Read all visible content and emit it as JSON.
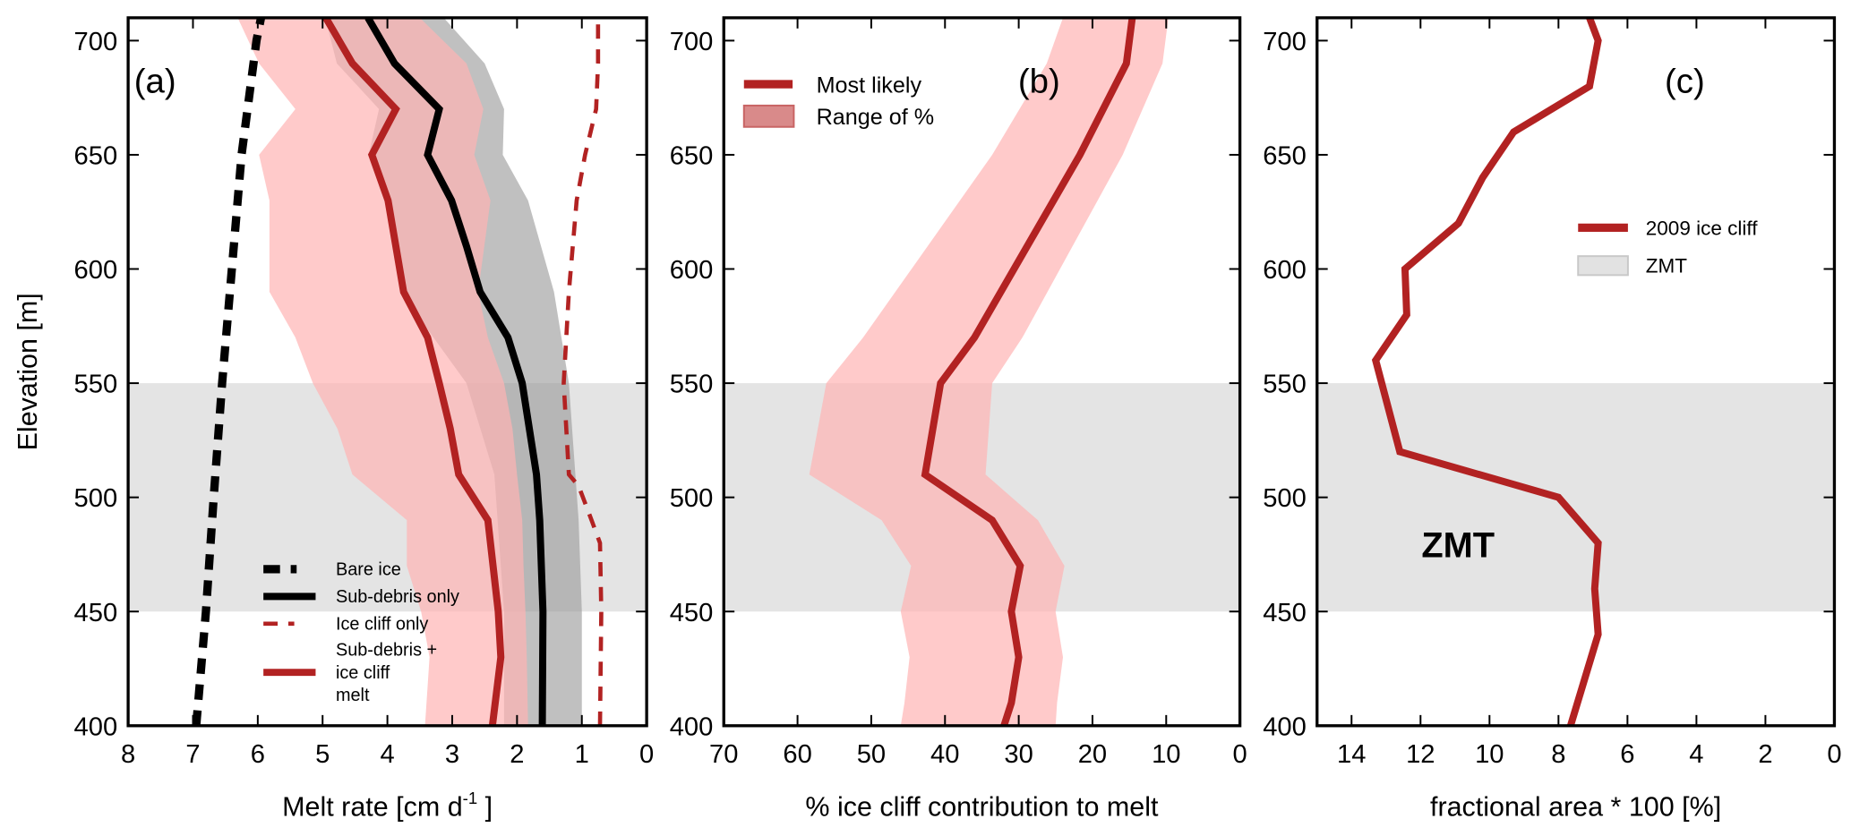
{
  "colors": {
    "red": "#b22222",
    "pink_band": "#ffb3b3",
    "gray_band": "#9a9a9a",
    "zmt": "#e4e4e4",
    "black": "#000000"
  },
  "chart_data": [
    {
      "panel": "a",
      "type": "line",
      "panel_label": "(a)",
      "xlabel": {
        "main": "Melt rate [cm d",
        "sup": "-1",
        "end": " ]"
      },
      "ylabel": "Elevation [m]",
      "xlim": [
        8,
        0
      ],
      "ylim": [
        400,
        710
      ],
      "xticks": [
        8,
        7,
        6,
        5,
        4,
        3,
        2,
        1,
        0
      ],
      "yticks": [
        400,
        450,
        500,
        550,
        600,
        650,
        700
      ],
      "zmt_range": [
        450,
        550
      ],
      "bands": [
        {
          "name": "Sub-debris + ice cliff melt range",
          "color": "pink",
          "elevation": [
            400,
            430,
            450,
            470,
            490,
            510,
            530,
            550,
            570,
            590,
            630,
            650,
            670,
            690,
            710
          ],
          "lower": [
            1.83,
            1.85,
            1.87,
            1.9,
            1.92,
            2.0,
            2.07,
            2.2,
            2.45,
            2.6,
            2.41,
            2.66,
            2.52,
            2.78,
            3.5
          ],
          "upper": [
            3.42,
            3.35,
            3.48,
            3.7,
            3.7,
            4.54,
            4.77,
            5.15,
            5.42,
            5.82,
            5.82,
            5.98,
            5.42,
            5.98,
            6.31
          ]
        },
        {
          "name": "Sub-debris only range",
          "color": "gray",
          "elevation": [
            400,
            450,
            490,
            510,
            550,
            590,
            630,
            650,
            670,
            690,
            710
          ],
          "lower": [
            1.0,
            1.0,
            1.05,
            1.1,
            1.2,
            1.43,
            1.83,
            2.22,
            2.2,
            2.5,
            3.13
          ],
          "upper": [
            2.2,
            2.2,
            2.3,
            2.35,
            2.78,
            3.8,
            3.94,
            4.29,
            4.13,
            4.78,
            4.96
          ]
        }
      ],
      "series": [
        {
          "name": "Bare ice",
          "style": "dashdot-black",
          "elevation": [
            400,
            450,
            500,
            550,
            600,
            650,
            700,
            710
          ],
          "values": [
            6.95,
            6.8,
            6.68,
            6.55,
            6.4,
            6.25,
            6.02,
            5.95
          ]
        },
        {
          "name": "Sub-debris only",
          "style": "solid-black",
          "elevation": [
            400,
            450,
            490,
            510,
            550,
            570,
            590,
            610,
            630,
            650,
            670,
            690,
            710
          ],
          "values": [
            1.61,
            1.6,
            1.65,
            1.7,
            1.92,
            2.14,
            2.57,
            2.78,
            3.01,
            3.38,
            3.2,
            3.89,
            4.3
          ]
        },
        {
          "name": "Ice cliff only",
          "style": "dashed-red",
          "elevation": [
            400,
            450,
            480,
            490,
            505,
            510,
            550,
            590,
            630,
            650,
            670,
            690,
            710
          ],
          "values": [
            0.72,
            0.7,
            0.72,
            0.85,
            1.05,
            1.2,
            1.28,
            1.2,
            1.08,
            0.95,
            0.78,
            0.75,
            0.75
          ]
        },
        {
          "name": "Sub-debris + ice cliff melt",
          "style": "solid-red",
          "elevation": [
            400,
            430,
            450,
            490,
            510,
            530,
            550,
            570,
            590,
            630,
            650,
            670,
            690,
            710
          ],
          "values": [
            2.38,
            2.25,
            2.29,
            2.45,
            2.9,
            3.03,
            3.2,
            3.38,
            3.75,
            3.99,
            4.24,
            3.87,
            4.54,
            4.95
          ]
        }
      ],
      "legend": {
        "placement": "bottom-center",
        "entries": [
          {
            "style": "dashdot-black",
            "lines": [
              "Bare ice"
            ]
          },
          {
            "style": "solid-black",
            "lines": [
              "Sub-debris only"
            ]
          },
          {
            "style": "dashed-red",
            "lines": [
              "Ice cliff only"
            ]
          },
          {
            "style": "solid-red",
            "lines": [
              "Sub-debris +",
              "ice cliff",
              "melt"
            ]
          }
        ]
      }
    },
    {
      "panel": "b",
      "type": "line",
      "panel_label": "(b)",
      "xlabel": {
        "main": "% ice cliff contribution to melt"
      },
      "xlim": [
        70,
        0
      ],
      "ylim": [
        400,
        710
      ],
      "xticks": [
        70,
        60,
        50,
        40,
        30,
        20,
        10,
        0
      ],
      "yticks": [
        400,
        450,
        500,
        550,
        600,
        650,
        700
      ],
      "zmt_range": [
        450,
        550
      ],
      "bands": [
        {
          "name": "Range of %",
          "color": "pink",
          "elevation": [
            400,
            410,
            430,
            450,
            470,
            490,
            510,
            550,
            570,
            650,
            690,
            710
          ],
          "lower": [
            25,
            24.8,
            24,
            25,
            23.8,
            27.4,
            34.5,
            33.6,
            29.5,
            15.9,
            10.5,
            9.7
          ],
          "upper": [
            46,
            45.5,
            44.8,
            46,
            44.6,
            48.6,
            58.4,
            56.1,
            51.1,
            33.6,
            26.2,
            24
          ]
        }
      ],
      "series": [
        {
          "name": "Most likely",
          "style": "solid-red",
          "elevation": [
            400,
            410,
            430,
            450,
            470,
            490,
            510,
            550,
            570,
            650,
            690,
            710
          ],
          "values": [
            32,
            31,
            30,
            31,
            29.8,
            33.6,
            42.7,
            40.6,
            36,
            21.7,
            15.4,
            14.6
          ]
        }
      ],
      "legend": {
        "placement": "top-left",
        "entries": [
          {
            "style": "solid-red",
            "lines": [
              "Most likely"
            ]
          },
          {
            "style": "patch-red",
            "lines": [
              "Range of %"
            ]
          }
        ]
      }
    },
    {
      "panel": "c",
      "type": "line",
      "panel_label": "(c)",
      "xlabel": {
        "main": "fractional area * 100 [%]"
      },
      "xlim": [
        15,
        0
      ],
      "ylim": [
        400,
        710
      ],
      "xticks": [
        14,
        12,
        10,
        8,
        6,
        4,
        2,
        0
      ],
      "yticks": [
        400,
        450,
        500,
        550,
        600,
        650,
        700
      ],
      "zmt_range": [
        450,
        550
      ],
      "zmt_annotation": "ZMT",
      "bands": [],
      "series": [
        {
          "name": "2009 ice cliff",
          "style": "solid-red",
          "elevation": [
            400,
            440,
            460,
            480,
            500,
            520,
            560,
            580,
            600,
            620,
            640,
            660,
            680,
            700,
            710
          ],
          "values": [
            7.65,
            6.85,
            6.95,
            6.85,
            8.0,
            12.6,
            13.3,
            12.4,
            12.45,
            10.9,
            10.2,
            9.3,
            7.1,
            6.85,
            7.1
          ]
        }
      ],
      "legend": {
        "placement": "center-right",
        "entries": [
          {
            "style": "solid-red",
            "lines": [
              "2009 ice cliff"
            ]
          },
          {
            "style": "patch-gray",
            "lines": [
              "ZMT"
            ]
          }
        ]
      }
    }
  ]
}
